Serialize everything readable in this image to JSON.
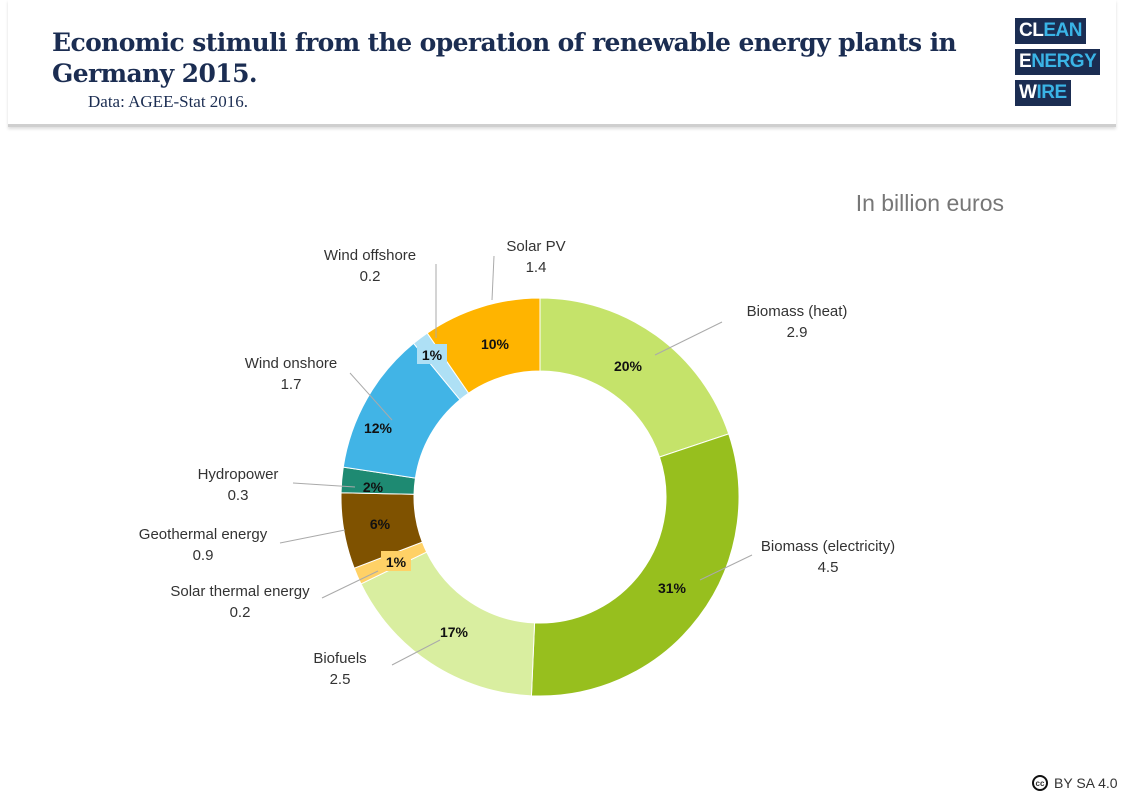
{
  "header": {
    "title": "Economic stimuli from the operation of renewable energy plants in Germany 2015.",
    "subtitle": "Data: AGEE-Stat 2016.",
    "logo_lines": [
      "CLEAN",
      "ENERGY",
      "WIRE"
    ]
  },
  "license": {
    "text": "BY SA 4.0",
    "icon": "creative-commons-icon"
  },
  "chart_data": {
    "type": "pie",
    "donut": true,
    "unit_label": "In billion euros",
    "start": "top, clockwise",
    "slices": [
      {
        "label": "Biomass (heat)",
        "value": 2.9,
        "percent": "20%",
        "color": "#c5e36a"
      },
      {
        "label": "Biomass (electricity)",
        "value": 4.5,
        "percent": "31%",
        "color": "#97bf1e"
      },
      {
        "label": "Biofuels",
        "value": 2.5,
        "percent": "17%",
        "color": "#d9eea0"
      },
      {
        "label": "Solar thermal energy",
        "value": 0.2,
        "percent": "1%",
        "color": "#ffd166"
      },
      {
        "label": "Geothermal energy",
        "value": 0.9,
        "percent": "6%",
        "color": "#7f5200"
      },
      {
        "label": "Hydropower",
        "value": 0.3,
        "percent": "2%",
        "color": "#1e8a72"
      },
      {
        "label": "Wind onshore",
        "value": 1.7,
        "percent": "12%",
        "color": "#41b4e6"
      },
      {
        "label": "Wind offshore",
        "value": 0.2,
        "percent": "1%",
        "color": "#aee0f5"
      },
      {
        "label": "Solar PV",
        "value": 1.4,
        "percent": "10%",
        "color": "#ffb400"
      }
    ]
  }
}
